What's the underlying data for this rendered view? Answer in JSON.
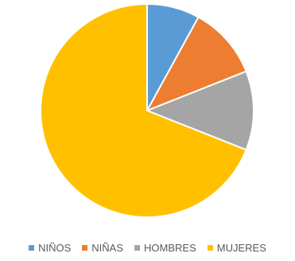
{
  "chart_data": {
    "type": "pie",
    "title": "",
    "categories": [
      "NIÑOS",
      "NIÑAS",
      "HOMBRES",
      "MUJERES"
    ],
    "values": [
      8,
      11,
      12,
      69
    ],
    "colors": [
      "#5B9BD5",
      "#ED7D31",
      "#A5A5A5",
      "#FFC000"
    ],
    "legend_position": "bottom",
    "slice_border_color": "#ffffff",
    "start_angle_deg": 0,
    "direction": "clockwise"
  }
}
